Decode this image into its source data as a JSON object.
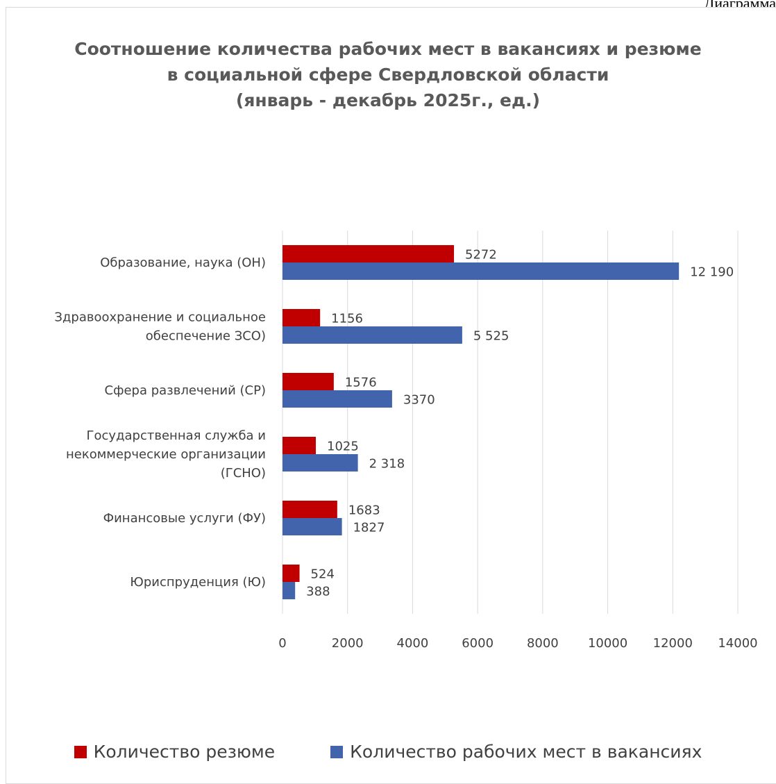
{
  "page": {
    "corner_label": "Диаграмма"
  },
  "colors": {
    "resume": "#c00000",
    "vacancy": "#4264ad",
    "grid": "#d9d9d9",
    "text": "#404040",
    "title": "#595959"
  },
  "chart_data": {
    "type": "bar",
    "orientation": "horizontal",
    "title": [
      "Соотношение количества рабочих мест в вакансиях и резюме",
      "в социальной сфере Свердловской области",
      "(январь - декабрь 2025г., ед.)"
    ],
    "categories": [
      [
        "Образование, наука (ОН)"
      ],
      [
        "Здравоохранение и социальное",
        "обеспечение ЗСО)"
      ],
      [
        "Сфера развлечений (СР)"
      ],
      [
        "Государственная служба и",
        "некоммерческие организации",
        "(ГСНО)"
      ],
      [
        "Финансовые услуги (ФУ)"
      ],
      [
        "Юриспруденция (Ю)"
      ]
    ],
    "series": [
      {
        "name": "Количество резюме",
        "values": [
          5272,
          1156,
          1576,
          1025,
          1683,
          524
        ],
        "labels": [
          "5272",
          "1156",
          "1576",
          "1025",
          "1683",
          "524"
        ]
      },
      {
        "name": "Количество рабочих мест в вакансиях",
        "values": [
          12190,
          5525,
          3370,
          2318,
          1827,
          388
        ],
        "labels": [
          "12 190",
          "5 525",
          "3370",
          "2 318",
          "1827",
          "388"
        ]
      }
    ],
    "xlim": [
      0,
      14000
    ],
    "xticks": [
      0,
      2000,
      4000,
      6000,
      8000,
      10000,
      12000,
      14000
    ],
    "grid": true,
    "legend": "bottom"
  }
}
